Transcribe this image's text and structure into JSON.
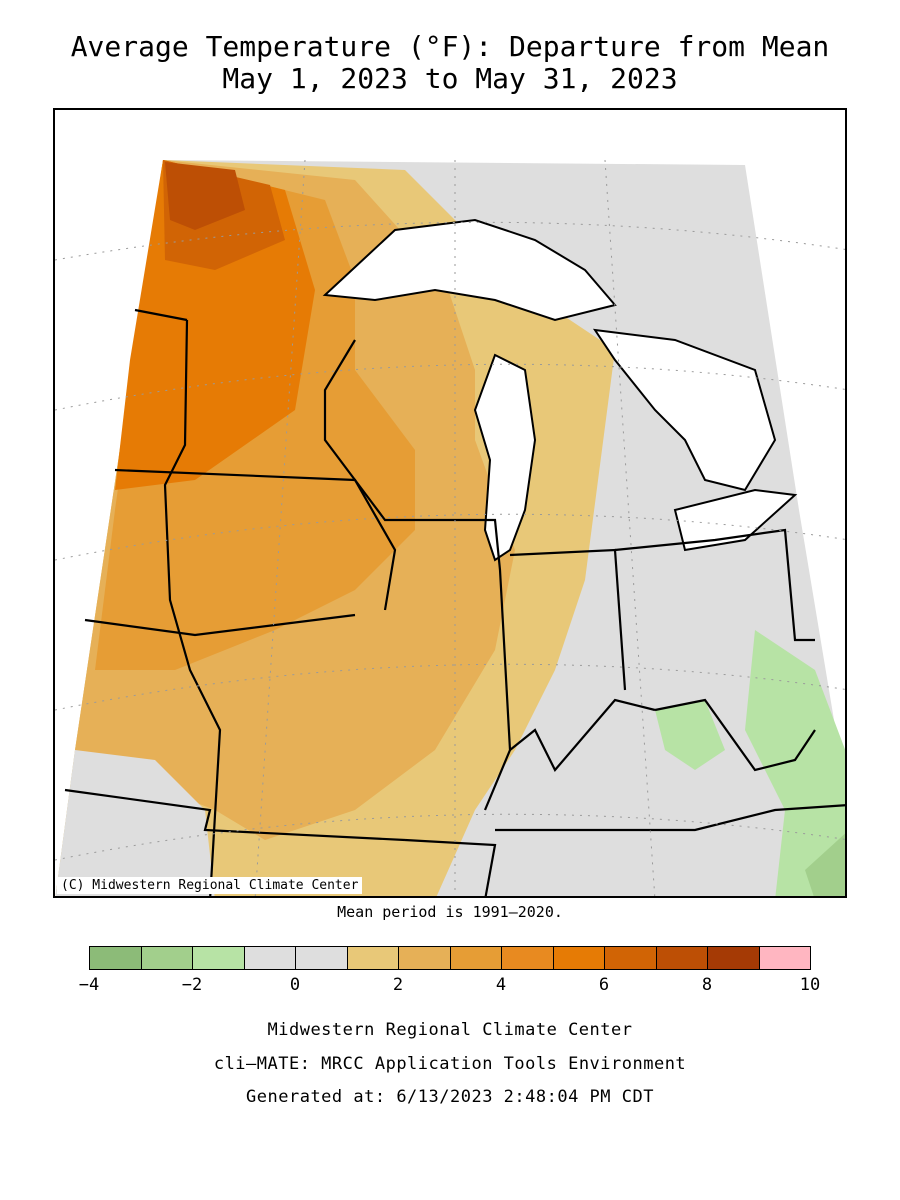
{
  "title": {
    "line1": "Average Temperature (°F): Departure from Mean",
    "line2": "May 1, 2023 to May 31, 2023"
  },
  "map": {
    "credit": "(C) Midwestern Regional Climate Center",
    "mean_period": "Mean period is 1991–2020."
  },
  "legend": {
    "colors": [
      "#8cbb78",
      "#a2cf8c",
      "#b7e3a5",
      "#dedede",
      "#dedede",
      "#e8c878",
      "#e6b057",
      "#e69d35",
      "#e88a20",
      "#e67b05",
      "#d16405",
      "#bd4f05",
      "#a53a05",
      "#ffb6c1"
    ],
    "tick_labels": [
      "−4",
      "−2",
      "0",
      "2",
      "4",
      "6",
      "8",
      "10"
    ]
  },
  "footer": {
    "line1": "Midwestern Regional Climate Center",
    "line2": "cli–MATE: MRCC Application Tools Environment",
    "line3": "Generated at: 6/13/2023 2:48:04 PM CDT"
  }
}
